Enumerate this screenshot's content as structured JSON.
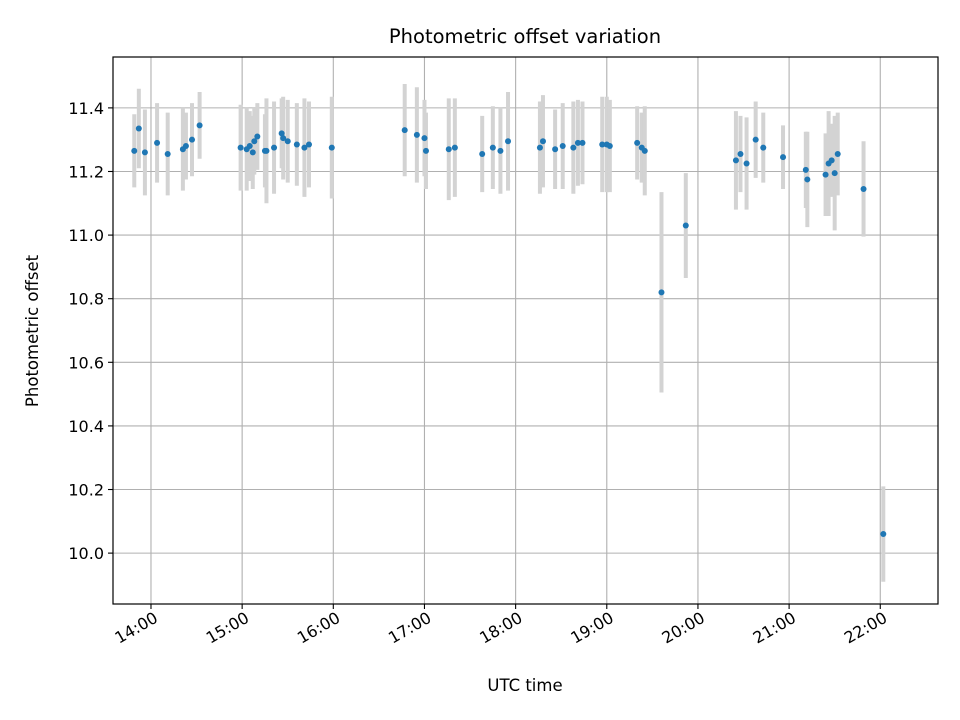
{
  "chart_data": {
    "type": "scatter",
    "title": "Photometric offset variation",
    "xlabel": "UTC time",
    "ylabel": "Photometric offset",
    "x_ticks": [
      "14:00",
      "15:00",
      "16:00",
      "17:00",
      "18:00",
      "19:00",
      "20:00",
      "21:00",
      "22:00"
    ],
    "y_ticks": [
      "10.0",
      "10.2",
      "10.4",
      "10.6",
      "10.8",
      "11.0",
      "11.2",
      "11.4"
    ],
    "xlim": [
      "13:35",
      "22:38"
    ],
    "ylim": [
      9.84,
      11.56
    ],
    "grid": true,
    "colors": {
      "marker": "#1f77b4",
      "errorbar": "#d3d3d3",
      "grid": "#b0b0b0"
    },
    "series": [
      {
        "x": [
          "13:49",
          "13:52",
          "13:56",
          "14:04",
          "14:11",
          "14:21",
          "14:23",
          "14:27",
          "14:32",
          "14:59",
          "15:03",
          "15:05",
          "15:07",
          "15:08",
          "15:10",
          "15:15",
          "15:16",
          "15:21",
          "15:26",
          "15:27",
          "15:30",
          "15:36",
          "15:41",
          "15:44",
          "15:59",
          "16:47",
          "16:55",
          "17:00",
          "17:01",
          "17:16",
          "17:20",
          "17:38",
          "17:45",
          "17:50",
          "17:55",
          "18:16",
          "18:18",
          "18:26",
          "18:31",
          "18:38",
          "18:41",
          "18:44",
          "18:57",
          "19:00",
          "19:02",
          "19:20",
          "19:23",
          "19:25",
          "19:36",
          "19:52",
          "20:25",
          "20:28",
          "20:32",
          "20:38",
          "20:43",
          "20:56",
          "21:11",
          "21:12",
          "21:24",
          "21:26",
          "21:28",
          "21:30",
          "21:32",
          "21:49",
          "22:02"
        ],
        "y": [
          11.265,
          11.335,
          11.26,
          11.29,
          11.255,
          11.27,
          11.28,
          11.3,
          11.345,
          11.275,
          11.27,
          11.28,
          11.26,
          11.295,
          11.31,
          11.265,
          11.265,
          11.275,
          11.32,
          11.305,
          11.295,
          11.285,
          11.275,
          11.285,
          11.275,
          11.33,
          11.315,
          11.305,
          11.265,
          11.27,
          11.275,
          11.255,
          11.275,
          11.265,
          11.295,
          11.275,
          11.295,
          11.27,
          11.28,
          11.275,
          11.29,
          11.29,
          11.285,
          11.285,
          11.28,
          11.29,
          11.275,
          11.265,
          10.82,
          11.03,
          11.235,
          11.255,
          11.225,
          11.3,
          11.275,
          11.245,
          11.205,
          11.175,
          11.19,
          11.225,
          11.235,
          11.195,
          11.255,
          11.145,
          10.06
        ],
        "err": [
          0.115,
          0.125,
          0.135,
          0.125,
          0.13,
          0.13,
          0.105,
          0.115,
          0.105,
          0.135,
          0.13,
          0.11,
          0.115,
          0.105,
          0.105,
          0.115,
          0.165,
          0.145,
          0.11,
          0.13,
          0.13,
          0.13,
          0.155,
          0.135,
          0.16,
          0.145,
          0.15,
          0.12,
          0.12,
          0.16,
          0.155,
          0.12,
          0.13,
          0.135,
          0.155,
          0.145,
          0.145,
          0.125,
          0.135,
          0.145,
          0.135,
          0.13,
          0.15,
          0.15,
          0.145,
          0.115,
          0.11,
          0.14,
          0.315,
          0.165,
          0.155,
          0.12,
          0.145,
          0.12,
          0.11,
          0.1,
          0.12,
          0.15,
          0.13,
          0.165,
          0.115,
          0.18,
          0.13,
          0.15,
          0.15
        ]
      }
    ]
  }
}
